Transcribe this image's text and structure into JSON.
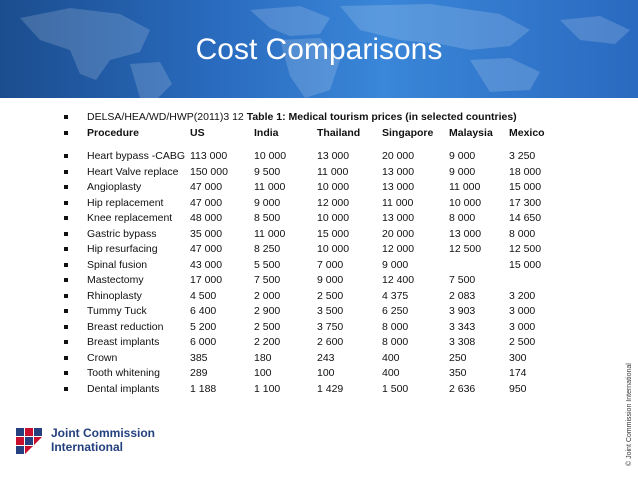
{
  "slide": {
    "title": "Cost Comparisons",
    "reference": {
      "code": "DELSA/HEA/WD/HWP(2011)3 12",
      "table_title": "Table 1: Medical tourism prices (in selected countries)"
    },
    "columns": [
      "Procedure",
      "US",
      "India",
      "Thailand",
      "Singapore",
      "Malaysia",
      "Mexico"
    ],
    "rows": [
      [
        "Heart bypass -CABG",
        "113 000",
        "10 000",
        "13 000",
        "20 000",
        "9 000",
        "3 250"
      ],
      [
        "Heart Valve replace",
        "150 000",
        "9 500",
        "11 000",
        "13 000",
        "9 000",
        "18 000"
      ],
      [
        "Angioplasty",
        "47 000",
        "11 000",
        "10 000",
        "13 000",
        "11 000",
        "15 000"
      ],
      [
        "Hip replacement",
        "47 000",
        "9 000",
        "12 000",
        "11 000",
        "10 000",
        "17 300"
      ],
      [
        "Knee replacement",
        "48 000",
        "8 500",
        "10 000",
        "13 000",
        "8 000",
        "14 650"
      ],
      [
        "Gastric bypass",
        "35 000",
        "11 000",
        "15 000",
        "20 000",
        "13 000",
        "8 000"
      ],
      [
        "Hip resurfacing",
        "47 000",
        "8 250",
        "10 000",
        "12 000",
        "12 500",
        "12 500"
      ],
      [
        "Spinal fusion",
        "43 000",
        "5 500",
        "7 000",
        "9 000",
        "",
        "15 000"
      ],
      [
        "Mastectomy",
        "17 000",
        "7 500",
        "9 000",
        "12 400",
        "7 500",
        ""
      ],
      [
        "Rhinoplasty",
        "4 500",
        "2 000",
        "2 500",
        "4 375",
        "2 083",
        "3 200"
      ],
      [
        "Tummy Tuck",
        "6 400",
        "2 900",
        "3 500",
        "6 250",
        "3 903",
        "3 000"
      ],
      [
        "Breast reduction",
        "5 200",
        "2 500",
        "3 750",
        "8 000",
        "3 343",
        "3 000"
      ],
      [
        "Breast implants",
        "6 000",
        "2 200",
        "2 600",
        "8 000",
        "3 308",
        "2 500"
      ],
      [
        "Crown",
        "385",
        "180",
        "243",
        "400",
        "250",
        "300"
      ],
      [
        "Tooth whitening",
        "289",
        "100",
        "100",
        "400",
        "350",
        "174"
      ],
      [
        "Dental implants",
        "1 188",
        "1 100",
        "1 429",
        "1 500",
        "2 636",
        "950"
      ]
    ]
  },
  "logo": {
    "line1": "Joint Commission",
    "line2": "International",
    "icon": "jci-logo-icon"
  },
  "copyright": "© Joint Commission International",
  "colors": {
    "header_dark": "#1b4d8e",
    "header_light": "#3a86d8",
    "logo_blue": "#24407e",
    "logo_red": "#c8102e"
  }
}
